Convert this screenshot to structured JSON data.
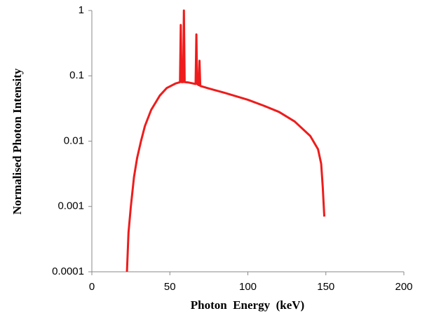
{
  "chart_data": {
    "type": "line",
    "x_label": "Photon  Energy  (keV)",
    "y_label": "Normalised Photon Intensity",
    "y_log": true,
    "grid": false,
    "xlim": [
      0,
      200
    ],
    "xticks": [
      0,
      50,
      100,
      150,
      200
    ],
    "ylim": [
      0.0001,
      1
    ],
    "yticks": [
      0.0001,
      0.001,
      0.01,
      0.1,
      1
    ],
    "series": [
      {
        "color": "#ee1c1c",
        "x": [
          22.5,
          23.5,
          25,
          27,
          29,
          31.5,
          34,
          38,
          43.6,
          48,
          53.5,
          56.5,
          57,
          57.5,
          58.5,
          59,
          59.5,
          62,
          66.5,
          67,
          67.5,
          68.5,
          69,
          69.5,
          75,
          85,
          100,
          110,
          120,
          130,
          140,
          145,
          147,
          148,
          149
        ],
        "values": [
          0.0001,
          0.0004,
          0.001,
          0.0028,
          0.0055,
          0.01,
          0.017,
          0.03,
          0.05,
          0.065,
          0.076,
          0.08,
          0.6,
          0.08,
          0.08,
          1,
          0.08,
          0.079,
          0.075,
          0.43,
          0.075,
          0.072,
          0.17,
          0.07,
          0.064,
          0.055,
          0.043,
          0.035,
          0.028,
          0.02,
          0.012,
          0.0075,
          0.0045,
          0.002,
          0.0007
        ]
      }
    ]
  }
}
